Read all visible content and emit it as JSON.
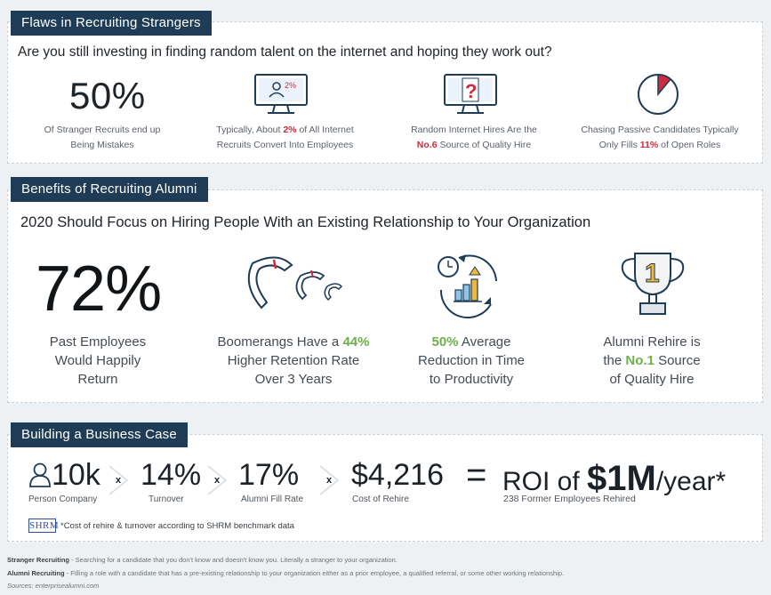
{
  "section1": {
    "header": "Flaws in Recruiting Strangers",
    "question": "Are you still investing in finding random talent on the internet and hoping they work out?",
    "stat1": {
      "value": "50%",
      "caption_line1": "Of Stranger Recruits end up",
      "caption_line2": "Being Mistakes"
    },
    "stat2": {
      "icon_text": "2%",
      "caption_line1_pre": "Typically, About ",
      "caption_line1_hl": "2%",
      "caption_line1_post": " of All Internet",
      "caption_line2": "Recruits Convert Into Employees"
    },
    "stat3": {
      "icon_text": "?",
      "caption_line1": "Random Internet Hires Are the",
      "caption_line2_hl": "No.6",
      "caption_line2_post": " Source of Quality Hire"
    },
    "stat4": {
      "pie_fraction": 0.11,
      "caption_line1": "Chasing Passive Candidates Typically",
      "caption_line2_pre": "Only Fills ",
      "caption_line2_hl": "11%",
      "caption_line2_post": " of Open Roles"
    }
  },
  "section2": {
    "header": "Benefits of Recruiting Alumni",
    "question": "2020 Should Focus on Hiring People With an Existing Relationship to Your Organization",
    "stat1": {
      "value": "72%",
      "caption_line1": "Past Employees",
      "caption_line2": "Would Happily",
      "caption_line3": "Return"
    },
    "stat2": {
      "caption_line1_pre": "Boomerangs Have a ",
      "caption_line1_hl": "44%",
      "caption_line2": "Higher Retention Rate",
      "caption_line3": "Over 3 Years"
    },
    "stat3": {
      "caption_line1_hl": "50%",
      "caption_line1_post": " Average",
      "caption_line2": "Reduction in Time",
      "caption_line3": "to Productivity"
    },
    "stat4": {
      "trophy_text": "1",
      "caption_line1": "Alumni Rehire is",
      "caption_line2_pre": "the ",
      "caption_line2_hl": "No.1",
      "caption_line2_post": " Source",
      "caption_line3": "of Quality Hire"
    }
  },
  "section3": {
    "header": "Building a Business Case",
    "items": [
      {
        "value": "10k",
        "label": "Person Company"
      },
      {
        "value": "14%",
        "label": "Turnover"
      },
      {
        "value": "17%",
        "label": "Alumni Fill Rate"
      },
      {
        "value": "$4,216",
        "label": "Cost of Rehire"
      }
    ],
    "times": "x",
    "equals": "=",
    "roi_pre": "ROI of ",
    "roi_value": "$1M",
    "roi_post": "/year*",
    "roi_sub": "238 Former Employees Rehired",
    "shrm_logo": "SHRM",
    "note": "*Cost of rehire & turnover according to SHRM benchmark data"
  },
  "footer": {
    "term1": "Stranger Recruiting",
    "def1": " - Searching for a candidate that you don't know and doesn't know you. Literally a stranger to your organization.",
    "term2": "Alumni Recruiting",
    "def2": " - Filling a role with a candidate that has a pre-existing relationship to your organization either as a prior employee, a qualified referral, or some other working relationship.",
    "sources": "Sources: enterprisealumni.com"
  },
  "colors": {
    "header_bg": "#1f3c57",
    "accent_red": "#d12a3c",
    "accent_green": "#6db04a",
    "icon_navy": "#1f3c57"
  }
}
